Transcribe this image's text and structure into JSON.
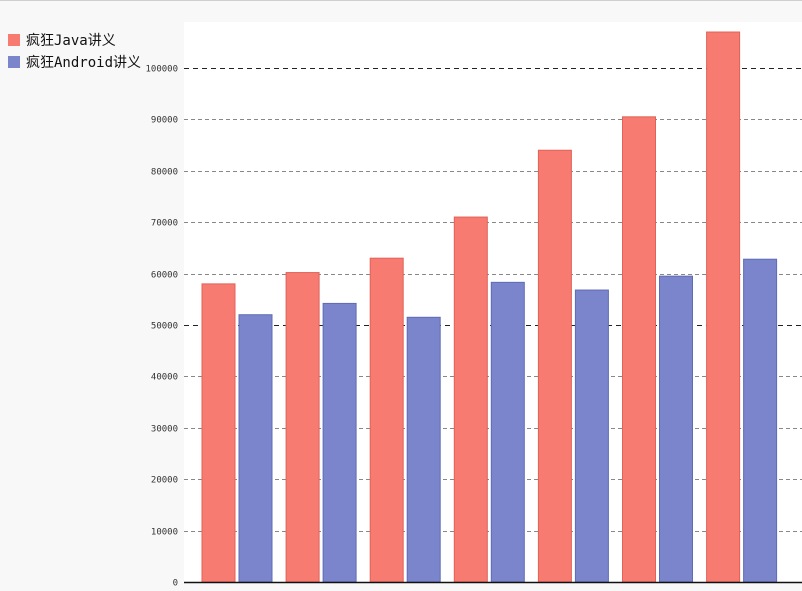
{
  "chart_data": {
    "type": "bar",
    "title": "",
    "xlabel": "",
    "ylabel": "",
    "ylim": [
      0,
      107000
    ],
    "yticks": [
      0,
      10000,
      20000,
      30000,
      40000,
      50000,
      60000,
      70000,
      80000,
      90000,
      100000
    ],
    "grid": true,
    "legend_position": "top-left",
    "categories": [
      "",
      "",
      "",
      "",
      "",
      "",
      ""
    ],
    "series": [
      {
        "name": "疯狂Java讲义",
        "color": "#f77b71",
        "values": [
          58000,
          60200,
          63000,
          71000,
          84000,
          90500,
          107000
        ]
      },
      {
        "name": "疯狂Android讲义",
        "color": "#7a85cc",
        "values": [
          52000,
          54200,
          51500,
          58300,
          56800,
          59500,
          62800
        ]
      }
    ]
  }
}
